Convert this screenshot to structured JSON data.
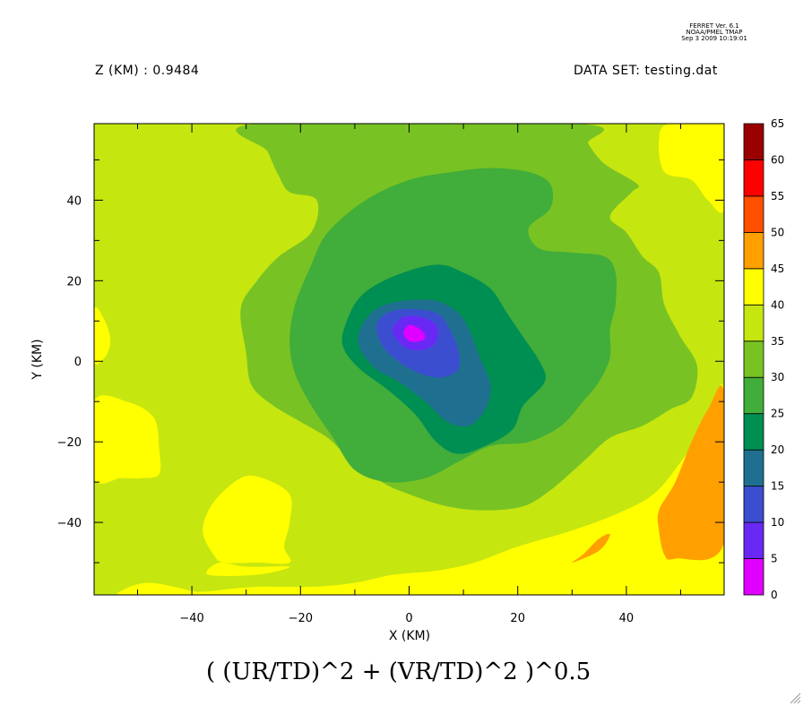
{
  "header": {
    "version_lines": [
      "FERRET Ver. 6.1",
      "NOAA/PMEL TMAP",
      "Sep  3 2009 10:19:01"
    ],
    "z_label": "Z (KM) : 0.9484",
    "dataset_label": "DATA SET: testing.dat"
  },
  "chart_data": {
    "type": "heatmap",
    "title": "( (UR/TD)^2 + (VR/TD)^2 )^0.5",
    "xlabel": "X (KM)",
    "ylabel": "Y (KM)",
    "xlim": [
      -58,
      58
    ],
    "ylim": [
      -58,
      59
    ],
    "x_ticks": [
      -40,
      -20,
      0,
      20,
      40
    ],
    "y_ticks": [
      -40,
      -20,
      0,
      20,
      40
    ],
    "x_tick_labels": [
      "−40",
      "−20",
      "0",
      "20",
      "40"
    ],
    "y_tick_labels": [
      "−40",
      "−20",
      "0",
      "20",
      "40"
    ],
    "grid": false,
    "colorbar": {
      "levels": [
        0,
        5,
        10,
        15,
        20,
        25,
        30,
        35,
        40,
        45,
        50,
        55,
        60,
        65
      ],
      "level_labels": [
        "0",
        "5",
        "10",
        "15",
        "20",
        "25",
        "30",
        "35",
        "40",
        "45",
        "50",
        "55",
        "60",
        "65"
      ],
      "colors": [
        "#e000ff",
        "#6a28f5",
        "#3c4ed0",
        "#1f7090",
        "#008f52",
        "#41ad3a",
        "#78c323",
        "#c6e610",
        "#ffff00",
        "#ff9f00",
        "#ff5000",
        "#ff0000",
        "#9a0000"
      ]
    },
    "regions": [
      {
        "value_band": "40-45",
        "points": [
          [
            -58,
            -10
          ],
          [
            -52,
            -10
          ],
          [
            -47,
            -14
          ],
          [
            -46,
            -22
          ],
          [
            -46,
            -28
          ],
          [
            -49,
            -29
          ],
          [
            -53,
            -29
          ],
          [
            -58,
            -29
          ]
        ]
      },
      {
        "value_band": "40-45",
        "points": [
          [
            -58,
            13
          ],
          [
            -56,
            10
          ],
          [
            -55,
            5
          ],
          [
            -56,
            1
          ],
          [
            -58,
            0
          ]
        ]
      },
      {
        "value_band": "40-45",
        "points": [
          [
            -37,
            -58
          ],
          [
            -40,
            -57
          ],
          [
            -48,
            -55
          ],
          [
            -53,
            -57
          ],
          [
            -52,
            -58
          ]
        ]
      },
      {
        "value_band": "40-45",
        "points": [
          [
            -36,
            -48
          ],
          [
            -38,
            -42
          ],
          [
            -36,
            -35
          ],
          [
            -31,
            -29
          ],
          [
            -27,
            -29
          ],
          [
            -22,
            -33
          ],
          [
            -22,
            -40
          ],
          [
            -23,
            -46
          ],
          [
            -22,
            -50
          ],
          [
            -28,
            -50
          ],
          [
            -34,
            -50
          ]
        ]
      },
      {
        "value_band": "40-45",
        "points": [
          [
            -35,
            -50
          ],
          [
            -30,
            -51
          ],
          [
            -22,
            -51
          ],
          [
            -28,
            -53
          ],
          [
            -37,
            -53
          ]
        ]
      },
      {
        "value_band": "40-45",
        "points": [
          [
            58,
            59
          ],
          [
            48,
            59
          ],
          [
            46,
            55
          ],
          [
            47,
            47
          ],
          [
            52,
            45
          ],
          [
            55,
            40
          ],
          [
            58,
            38
          ]
        ]
      },
      {
        "value_band": "40-45",
        "points": [
          [
            58,
            -8
          ],
          [
            55,
            -15
          ],
          [
            50,
            -25
          ],
          [
            45,
            -33
          ],
          [
            38,
            -38
          ],
          [
            30,
            -42
          ],
          [
            20,
            -46
          ],
          [
            12,
            -50
          ],
          [
            5,
            -52
          ],
          [
            -3,
            -53
          ],
          [
            -10,
            -55
          ],
          [
            -18,
            -56
          ],
          [
            -28,
            -56
          ],
          [
            -36,
            -57
          ],
          [
            -38,
            -58
          ],
          [
            58,
            -58
          ]
        ]
      },
      {
        "value_band": "45-50",
        "points": [
          [
            58,
            -8
          ],
          [
            55,
            -12
          ],
          [
            52,
            -20
          ],
          [
            49,
            -30
          ],
          [
            46,
            -37
          ],
          [
            46,
            -42
          ],
          [
            47,
            -48
          ],
          [
            49,
            -49
          ],
          [
            58,
            -45
          ]
        ]
      },
      {
        "value_band": "45-50",
        "points": [
          [
            30,
            -50
          ],
          [
            32,
            -48
          ],
          [
            35,
            -44
          ],
          [
            37,
            -43
          ],
          [
            35,
            -47
          ]
        ]
      },
      {
        "value_band": "30-35",
        "points": [
          [
            -28,
            59
          ],
          [
            -26,
            52
          ],
          [
            -24,
            46
          ],
          [
            -22,
            42
          ],
          [
            -17,
            40
          ],
          [
            -18,
            32
          ],
          [
            -24,
            26
          ],
          [
            -28,
            20
          ],
          [
            -31,
            13
          ],
          [
            -30,
            2
          ],
          [
            -29,
            -6
          ],
          [
            -25,
            -11
          ],
          [
            -20,
            -15
          ],
          [
            -15,
            -19
          ],
          [
            -11,
            -24
          ],
          [
            -5,
            -30
          ],
          [
            0,
            -33
          ],
          [
            7,
            -36
          ],
          [
            14,
            -37
          ],
          [
            21,
            -36
          ],
          [
            26,
            -32
          ],
          [
            32,
            -25
          ],
          [
            37,
            -19
          ],
          [
            43,
            -16
          ],
          [
            48,
            -12
          ],
          [
            52,
            -9
          ],
          [
            53,
            -1
          ],
          [
            50,
            6
          ],
          [
            47,
            14
          ],
          [
            46,
            22
          ],
          [
            43,
            26
          ],
          [
            40,
            32
          ],
          [
            37,
            36
          ],
          [
            41,
            42
          ],
          [
            42,
            44
          ],
          [
            36,
            49
          ],
          [
            33,
            54
          ],
          [
            31,
            59
          ]
        ]
      },
      {
        "value_band": "25-30",
        "points": [
          [
            -18,
            24
          ],
          [
            -15,
            32
          ],
          [
            -8,
            40
          ],
          [
            0,
            45
          ],
          [
            8,
            47
          ],
          [
            15,
            48
          ],
          [
            22,
            47
          ],
          [
            26,
            44
          ],
          [
            26,
            38
          ],
          [
            22,
            33
          ],
          [
            24,
            28
          ],
          [
            30,
            27
          ],
          [
            36,
            26
          ],
          [
            38,
            22
          ],
          [
            38,
            14
          ],
          [
            37,
            8
          ],
          [
            37,
            1
          ],
          [
            35,
            -5
          ],
          [
            32,
            -10
          ],
          [
            28,
            -16
          ],
          [
            22,
            -20
          ],
          [
            15,
            -21
          ],
          [
            9,
            -25
          ],
          [
            3,
            -29
          ],
          [
            -4,
            -30
          ],
          [
            -10,
            -27
          ],
          [
            -14,
            -19
          ],
          [
            -18,
            -11
          ],
          [
            -21,
            -3
          ],
          [
            -22,
            5
          ],
          [
            -21,
            14
          ]
        ]
      },
      {
        "value_band": "20-25",
        "points": [
          [
            -12,
            8
          ],
          [
            -9,
            16
          ],
          [
            -3,
            21
          ],
          [
            5,
            24
          ],
          [
            10,
            22
          ],
          [
            15,
            18
          ],
          [
            18,
            12
          ],
          [
            21,
            6
          ],
          [
            24,
            0
          ],
          [
            25,
            -5
          ],
          [
            21,
            -11
          ],
          [
            19,
            -17
          ],
          [
            14,
            -21
          ],
          [
            9,
            -23
          ],
          [
            5,
            -20
          ],
          [
            1,
            -13
          ],
          [
            -4,
            -7
          ],
          [
            -9,
            -2
          ],
          [
            -12,
            3
          ]
        ]
      },
      {
        "value_band": "15-20",
        "points": [
          [
            -9,
            8
          ],
          [
            -6,
            13
          ],
          [
            -1,
            15
          ],
          [
            5,
            15
          ],
          [
            9,
            12
          ],
          [
            11,
            8
          ],
          [
            13,
            1
          ],
          [
            15,
            -6
          ],
          [
            14,
            -12
          ],
          [
            11,
            -16
          ],
          [
            7,
            -15
          ],
          [
            3,
            -10
          ],
          [
            -2,
            -5
          ],
          [
            -6,
            -2
          ],
          [
            -9,
            3
          ]
        ]
      },
      {
        "value_band": "10-15",
        "points": [
          [
            -6,
            9
          ],
          [
            -4,
            12
          ],
          [
            0,
            13
          ],
          [
            5,
            12
          ],
          [
            7,
            9
          ],
          [
            9,
            3
          ],
          [
            9,
            -2
          ],
          [
            6,
            -4
          ],
          [
            2,
            -3
          ],
          [
            -2,
            0
          ],
          [
            -5,
            4
          ]
        ]
      },
      {
        "value_band": "5-10",
        "points": [
          [
            -3,
            8
          ],
          [
            -1,
            11
          ],
          [
            2,
            11
          ],
          [
            5,
            9
          ],
          [
            5,
            5
          ],
          [
            3,
            3
          ],
          [
            0,
            3
          ],
          [
            -2,
            5
          ]
        ]
      },
      {
        "value_band": "0-5",
        "points": [
          [
            -1,
            7
          ],
          [
            0,
            9
          ],
          [
            2,
            8
          ],
          [
            3,
            6
          ],
          [
            2,
            5
          ],
          [
            0,
            5
          ]
        ]
      }
    ]
  }
}
